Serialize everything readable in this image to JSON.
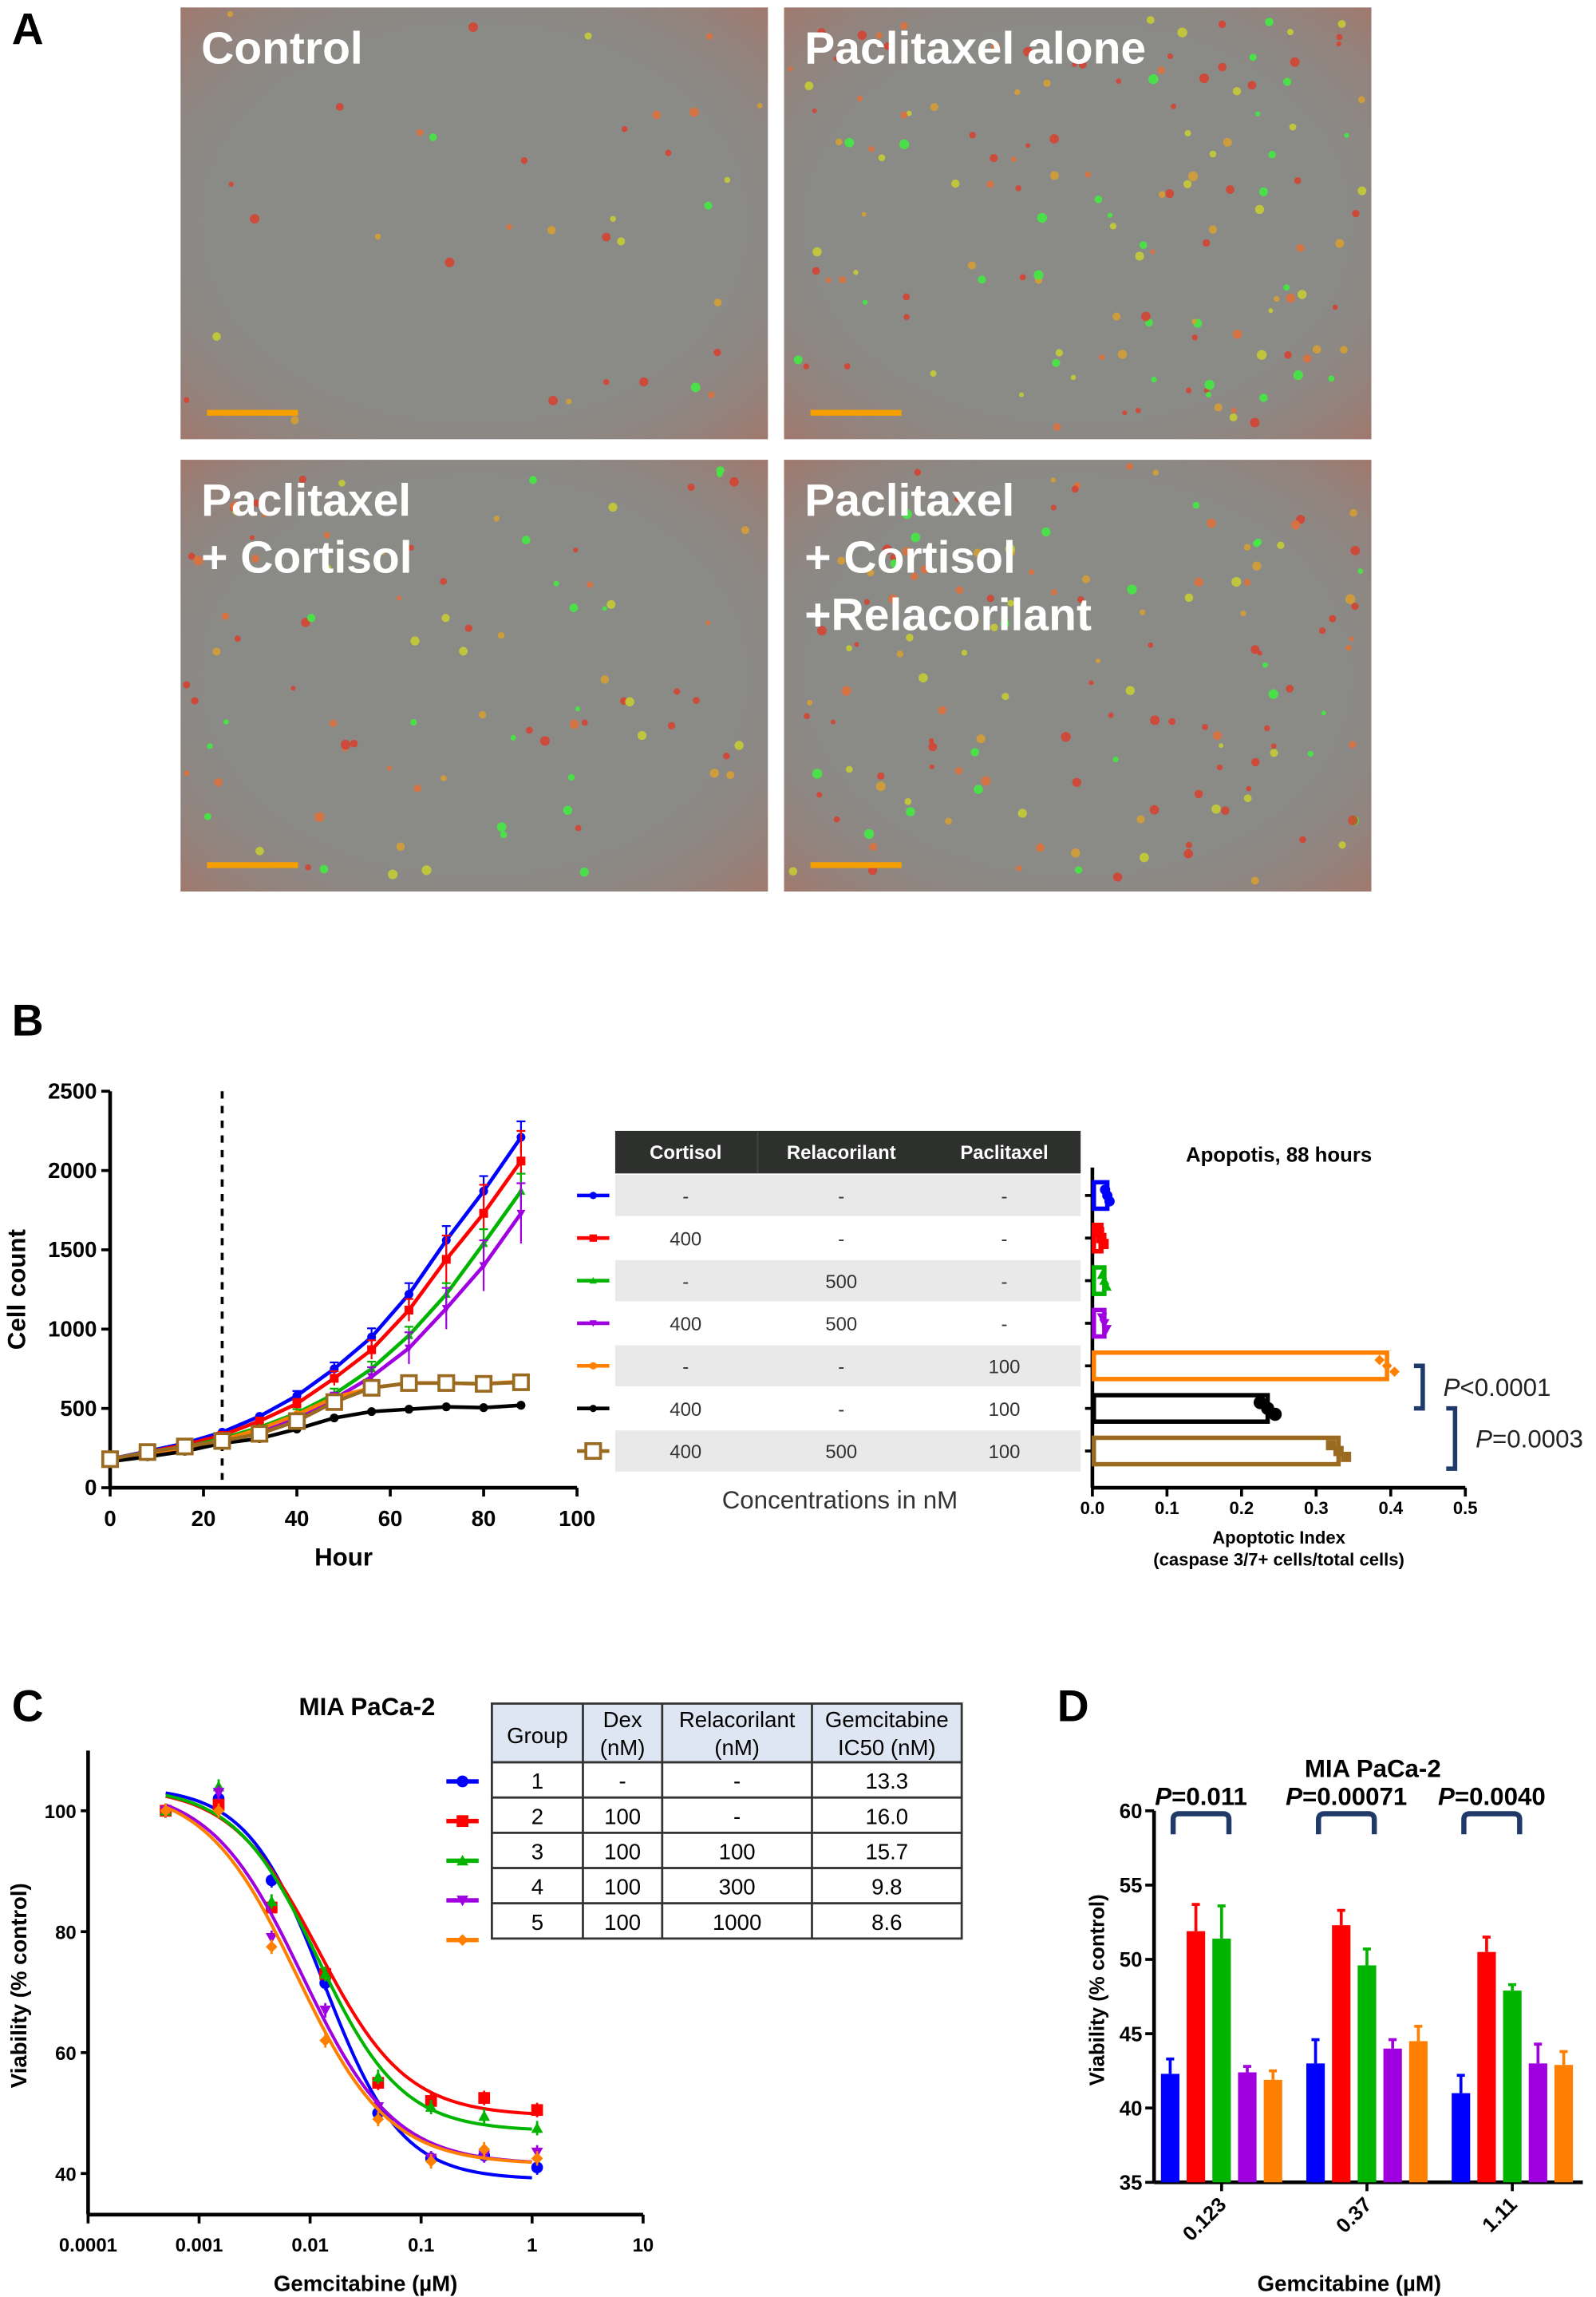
{
  "panel_labels": {
    "a": "A",
    "b": "B",
    "c": "C",
    "d": "D"
  },
  "panel_a": {
    "images": [
      {
        "label_lines": [
          "Control"
        ],
        "dot_density": "low"
      },
      {
        "label_lines": [
          "Paclitaxel alone"
        ],
        "dot_density": "high"
      },
      {
        "label_lines": [
          "Paclitaxel",
          "+ Cortisol"
        ],
        "dot_density": "medium"
      },
      {
        "label_lines": [
          "Paclitaxel",
          "+ Cortisol",
          "+Relacorilant"
        ],
        "dot_density": "high"
      }
    ],
    "scale_bar_color": "#f5a000"
  },
  "colors": {
    "blue": "#0000ff",
    "red": "#ff0000",
    "green": "#00b400",
    "purple": "#a000e0",
    "orange": "#ff8000",
    "black": "#000000",
    "brown": "#9a6a20",
    "bracket": "#1f3a68"
  },
  "panel_b_table": {
    "headers": [
      "Cortisol",
      "Relacorilant",
      "Paclitaxel"
    ],
    "rows": [
      [
        "-",
        "-",
        "-"
      ],
      [
        "400",
        "-",
        "-"
      ],
      [
        "-",
        "500",
        "-"
      ],
      [
        "400",
        "500",
        "-"
      ],
      [
        "-",
        "-",
        "100"
      ],
      [
        "400",
        "-",
        "100"
      ],
      [
        "400",
        "500",
        "100"
      ]
    ],
    "footnote": "Concentrations in nM"
  },
  "panel_c_table": {
    "headers": [
      [
        "Group"
      ],
      [
        "Dex",
        "(nM)"
      ],
      [
        "Relacorilant",
        "(nM)"
      ],
      [
        "Gemcitabine",
        "IC50 (nM)"
      ]
    ],
    "rows": [
      [
        "1",
        "-",
        "-",
        "13.3"
      ],
      [
        "2",
        "100",
        "-",
        "16.0"
      ],
      [
        "3",
        "100",
        "100",
        "15.7"
      ],
      [
        "4",
        "100",
        "300",
        "9.8"
      ],
      [
        "5",
        "100",
        "1000",
        "8.6"
      ]
    ]
  },
  "chart_data": [
    {
      "id": "growth",
      "type": "line",
      "xlabel": "Hour",
      "ylabel": "Cell count",
      "xlim": [
        0,
        100
      ],
      "ylim": [
        0,
        2500
      ],
      "xticks": [
        "0",
        "20",
        "40",
        "60",
        "80",
        "100"
      ],
      "yticks": [
        "0",
        "500",
        "1000",
        "1500",
        "2000",
        "2500"
      ],
      "vline_x": 24,
      "x": [
        0,
        8,
        16,
        24,
        32,
        40,
        48,
        56,
        64,
        72,
        80,
        88
      ],
      "series": [
        {
          "color": "blue",
          "marker": "circle",
          "values": [
            180,
            230,
            280,
            350,
            450,
            580,
            750,
            950,
            1220,
            1560,
            1870,
            2210
          ],
          "err": [
            10,
            10,
            10,
            15,
            20,
            30,
            40,
            55,
            70,
            90,
            95,
            100
          ]
        },
        {
          "color": "red",
          "marker": "square",
          "values": [
            175,
            225,
            270,
            330,
            420,
            530,
            690,
            870,
            1120,
            1440,
            1730,
            2060
          ],
          "err": [
            10,
            10,
            10,
            15,
            20,
            30,
            45,
            60,
            70,
            150,
            180,
            190
          ]
        },
        {
          "color": "green",
          "marker": "triangle",
          "values": [
            170,
            215,
            255,
            310,
            380,
            470,
            590,
            750,
            960,
            1220,
            1540,
            1870
          ],
          "err": [
            10,
            10,
            10,
            15,
            20,
            25,
            35,
            45,
            55,
            70,
            90,
            110
          ]
        },
        {
          "color": "purple",
          "marker": "triangle-down",
          "values": [
            165,
            210,
            245,
            290,
            360,
            440,
            560,
            700,
            880,
            1130,
            1400,
            1730
          ],
          "err": [
            10,
            10,
            10,
            15,
            20,
            25,
            40,
            60,
            100,
            130,
            160,
            190
          ]
        },
        {
          "color": "orange",
          "marker": "circle",
          "values": [
            175,
            215,
            250,
            300,
            370,
            460,
            570,
            630,
            660,
            660,
            655,
            670
          ],
          "err": [
            8,
            8,
            8,
            10,
            12,
            15,
            15,
            15,
            15,
            15,
            15,
            15
          ]
        },
        {
          "color": "black",
          "marker": "circle",
          "values": [
            165,
            195,
            230,
            280,
            310,
            370,
            440,
            480,
            495,
            510,
            505,
            520
          ],
          "err": [
            8,
            8,
            8,
            10,
            10,
            12,
            15,
            15,
            15,
            15,
            15,
            15
          ]
        },
        {
          "color": "brown",
          "marker": "open-square",
          "values": [
            180,
            225,
            260,
            295,
            340,
            420,
            540,
            630,
            660,
            660,
            655,
            665
          ],
          "err": [
            8,
            8,
            8,
            10,
            12,
            15,
            15,
            15,
            15,
            15,
            15,
            15
          ]
        }
      ]
    },
    {
      "id": "apoptosis",
      "type": "bar",
      "orientation": "horizontal",
      "title": "Apopotis, 88 hours",
      "xlabel_lines": [
        "Apoptotic Index",
        "(caspase 3/7+ cells/total cells)"
      ],
      "xlim": [
        0,
        0.5
      ],
      "xticks": [
        "0.0",
        "0.1",
        "0.2",
        "0.3",
        "0.4",
        "0.5"
      ],
      "bars": [
        {
          "color": "blue",
          "value": 0.02
        },
        {
          "color": "red",
          "value": 0.012
        },
        {
          "color": "green",
          "value": 0.016
        },
        {
          "color": "purple",
          "value": 0.016
        },
        {
          "color": "orange",
          "value": 0.395
        },
        {
          "color": "black",
          "value": 0.235
        },
        {
          "color": "brown",
          "value": 0.33
        }
      ],
      "annotations": [
        {
          "between": [
            4,
            5
          ],
          "text_prefix": "P",
          "text_rest": "<0.0001"
        },
        {
          "between": [
            5,
            6
          ],
          "text_prefix": "P",
          "text_rest": "=0.0003"
        }
      ]
    },
    {
      "id": "dose-response",
      "type": "scatter",
      "title": "MIA PaCa-2",
      "xlabel": "Gemcitabine (µM)",
      "ylabel": "Viability (% control)",
      "xscale": "log",
      "xlim": [
        0.0001,
        10
      ],
      "ylim": [
        33,
        110
      ],
      "xticks": [
        "0.0001",
        "0.001",
        "0.01",
        "0.1",
        "1",
        "10"
      ],
      "yticks": [
        "40",
        "60",
        "80",
        "100"
      ],
      "x": [
        0.0005,
        0.0015,
        0.0045,
        0.0137,
        0.041,
        0.123,
        0.37,
        1.11
      ],
      "series": [
        {
          "color": "blue",
          "marker": "circle",
          "values": [
            100,
            102,
            88.5,
            71.5,
            50,
            42.5,
            43,
            41
          ]
        },
        {
          "color": "red",
          "marker": "square",
          "values": [
            100,
            101,
            84,
            73,
            55,
            52,
            52.5,
            50.5
          ]
        },
        {
          "color": "green",
          "marker": "triangle",
          "values": [
            100,
            104,
            85,
            73,
            56,
            51,
            49.5,
            47.5
          ]
        },
        {
          "color": "purple",
          "marker": "triangle-down",
          "values": [
            100,
            103,
            79,
            67,
            51,
            42.5,
            43,
            43.5
          ]
        },
        {
          "color": "orange",
          "marker": "diamond",
          "values": [
            100,
            100,
            77.5,
            62,
            49,
            42,
            44,
            42.5
          ]
        }
      ]
    },
    {
      "id": "viability-bars",
      "type": "bar",
      "title": "MIA PaCa-2",
      "xlabel": "Gemcitabine (µM)",
      "ylabel": "Viability (% control)",
      "ylim": [
        35,
        60
      ],
      "yticks": [
        "35",
        "40",
        "45",
        "50",
        "55",
        "60"
      ],
      "categories": [
        "0.123",
        "0.37",
        "1.11"
      ],
      "series_colors": [
        "blue",
        "red",
        "green",
        "purple",
        "orange"
      ],
      "values": [
        [
          42.3,
          51.9,
          51.4,
          42.4,
          41.9
        ],
        [
          43.0,
          52.3,
          49.6,
          44.0,
          44.5
        ],
        [
          41.0,
          50.5,
          47.9,
          43.0,
          42.9
        ]
      ],
      "err": [
        [
          1.0,
          1.8,
          2.2,
          0.4,
          0.6
        ],
        [
          1.6,
          1.0,
          1.1,
          0.6,
          1.0
        ],
        [
          1.2,
          1.0,
          0.4,
          1.3,
          0.9
        ]
      ],
      "annotations": [
        {
          "category": 0,
          "text_prefix": "P",
          "text_rest": "=0.011"
        },
        {
          "category": 1,
          "text_prefix": "P",
          "text_rest": "=0.00071"
        },
        {
          "category": 2,
          "text_prefix": "P",
          "text_rest": "=0.0040"
        }
      ]
    }
  ]
}
